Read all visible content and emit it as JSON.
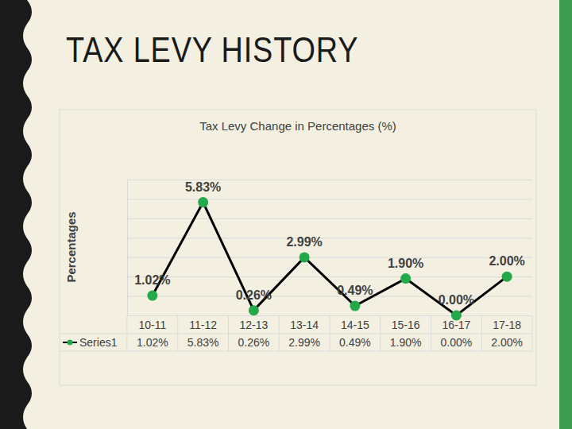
{
  "page": {
    "title": "TAX LEVY HISTORY"
  },
  "chart_data": {
    "type": "line",
    "title": "Tax Levy Change in Percentages (%)",
    "ylabel": "Percentages",
    "categories": [
      "10-11",
      "11-12",
      "12-13",
      "13-14",
      "14-15",
      "15-16",
      "16-17",
      "17-18"
    ],
    "series": [
      {
        "name": "Series1",
        "color": "#000000",
        "marker": "circle",
        "values": [
          1.02,
          5.83,
          0.26,
          2.99,
          0.49,
          1.9,
          0,
          2
        ],
        "value_labels": [
          "1.02%",
          "5.83%",
          "0.26%",
          "2.99%",
          "0.49%",
          "1.90%",
          "0.00%",
          "2.00%"
        ]
      }
    ],
    "ylim": [
      0,
      7
    ],
    "yticks": [
      0,
      1,
      2,
      3,
      4,
      5,
      6,
      7
    ],
    "grid": true,
    "data_labels": true,
    "tick_labels": "x"
  }
}
